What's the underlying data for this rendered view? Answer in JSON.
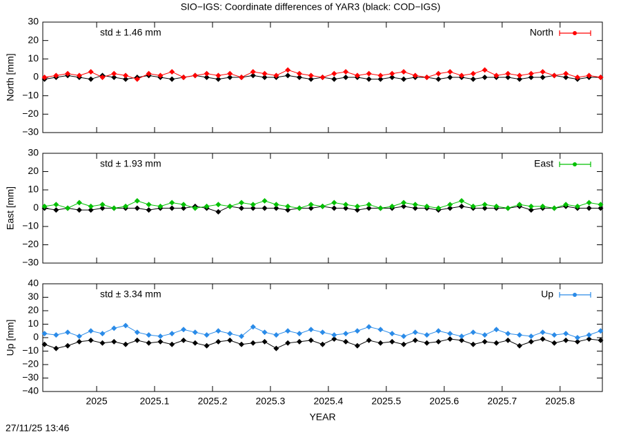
{
  "title": "SIO−IGS: Coordinate differences of YAR3 (black: COD−IGS)",
  "footer": "27/11/25 13:46",
  "chart_data": [
    {
      "type": "line",
      "ylabel": "North [mm]",
      "annotation": "std ± 1.46 mm",
      "x": [
        2024.91,
        2024.93,
        2024.95,
        2024.97,
        2024.99,
        2025.01,
        2025.03,
        2025.05,
        2025.07,
        2025.09,
        2025.11,
        2025.13,
        2025.15,
        2025.17,
        2025.19,
        2025.21,
        2025.23,
        2025.25,
        2025.27,
        2025.29,
        2025.31,
        2025.33,
        2025.35,
        2025.37,
        2025.39,
        2025.41,
        2025.43,
        2025.45,
        2025.47,
        2025.49,
        2025.51,
        2025.53,
        2025.55,
        2025.57,
        2025.59,
        2025.61,
        2025.63,
        2025.65,
        2025.67,
        2025.69,
        2025.71,
        2025.73,
        2025.75,
        2025.77,
        2025.79,
        2025.81,
        2025.83,
        2025.85,
        2025.87
      ],
      "series": [
        {
          "color": "#000000",
          "values": [
            -1,
            0,
            1,
            0,
            -1,
            1,
            0,
            -1,
            0,
            1,
            0,
            -1,
            0,
            1,
            0,
            -1,
            0,
            0,
            1,
            0,
            0,
            1,
            0,
            -1,
            0,
            -1,
            0,
            0,
            -1,
            -1,
            0,
            -1,
            0,
            0,
            -1,
            0,
            0,
            -1,
            0,
            0,
            0,
            -1,
            0,
            0,
            1,
            0,
            -1,
            0,
            0
          ]
        },
        {
          "name": "North",
          "color": "#ff0000",
          "values": [
            0,
            1,
            2,
            1,
            3,
            0,
            2,
            1,
            -1,
            2,
            1,
            3,
            0,
            1,
            2,
            1,
            2,
            0,
            3,
            2,
            1,
            4,
            2,
            1,
            0,
            2,
            3,
            1,
            2,
            1,
            2,
            3,
            1,
            0,
            2,
            3,
            1,
            2,
            4,
            1,
            2,
            1,
            2,
            3,
            1,
            2,
            0,
            1,
            0
          ]
        }
      ],
      "xlim": [
        2024.907,
        2025.873
      ],
      "ylim": [
        -30,
        30
      ],
      "xticks": [
        2025,
        2025.1,
        2025.2,
        2025.3,
        2025.4,
        2025.5,
        2025.6,
        2025.7,
        2025.8
      ],
      "yticks": [
        {
          "value": -30,
          "label": "−30"
        },
        {
          "value": -20,
          "label": "−20"
        },
        {
          "value": -10,
          "label": "−10"
        },
        0,
        10,
        20,
        30
      ]
    },
    {
      "type": "line",
      "ylabel": "East [mm]",
      "annotation": "std ± 1.93 mm",
      "x": [
        2024.91,
        2024.93,
        2024.95,
        2024.97,
        2024.99,
        2025.01,
        2025.03,
        2025.05,
        2025.07,
        2025.09,
        2025.11,
        2025.13,
        2025.15,
        2025.17,
        2025.19,
        2025.21,
        2025.23,
        2025.25,
        2025.27,
        2025.29,
        2025.31,
        2025.33,
        2025.35,
        2025.37,
        2025.39,
        2025.41,
        2025.43,
        2025.45,
        2025.47,
        2025.49,
        2025.51,
        2025.53,
        2025.55,
        2025.57,
        2025.59,
        2025.61,
        2025.63,
        2025.65,
        2025.67,
        2025.69,
        2025.71,
        2025.73,
        2025.75,
        2025.77,
        2025.79,
        2025.81,
        2025.83,
        2025.85,
        2025.87
      ],
      "series": [
        {
          "color": "#000000",
          "values": [
            0,
            -1,
            0,
            -1,
            -1,
            0,
            0,
            0,
            0,
            -1,
            0,
            0,
            0,
            1,
            0,
            -2,
            1,
            0,
            0,
            0,
            0,
            -1,
            0,
            0,
            1,
            0,
            0,
            -1,
            0,
            0,
            0,
            1,
            0,
            0,
            -1,
            0,
            1,
            0,
            0,
            0,
            0,
            1,
            -1,
            0,
            0,
            1,
            0,
            0,
            0
          ]
        },
        {
          "name": "East",
          "color": "#00c000",
          "values": [
            1,
            2,
            0,
            3,
            1,
            2,
            0,
            1,
            4,
            2,
            1,
            3,
            2,
            0,
            1,
            2,
            1,
            3,
            2,
            4,
            2,
            1,
            0,
            2,
            1,
            3,
            2,
            1,
            2,
            0,
            1,
            3,
            2,
            1,
            0,
            2,
            4,
            1,
            2,
            1,
            0,
            2,
            1,
            1,
            0,
            2,
            1,
            3,
            2
          ]
        }
      ],
      "xlim": [
        2024.907,
        2025.873
      ],
      "ylim": [
        -30,
        30
      ],
      "xticks": [
        2025,
        2025.1,
        2025.2,
        2025.3,
        2025.4,
        2025.5,
        2025.6,
        2025.7,
        2025.8
      ],
      "yticks": [
        {
          "value": -30,
          "label": "−30"
        },
        {
          "value": -20,
          "label": "−20"
        },
        {
          "value": -10,
          "label": "−10"
        },
        0,
        10,
        20,
        30
      ]
    },
    {
      "type": "line",
      "ylabel": "Up [mm]",
      "annotation": "std ± 3.34 mm",
      "xlabel": "YEAR",
      "x": [
        2024.91,
        2024.93,
        2024.95,
        2024.97,
        2024.99,
        2025.01,
        2025.03,
        2025.05,
        2025.07,
        2025.09,
        2025.11,
        2025.13,
        2025.15,
        2025.17,
        2025.19,
        2025.21,
        2025.23,
        2025.25,
        2025.27,
        2025.29,
        2025.31,
        2025.33,
        2025.35,
        2025.37,
        2025.39,
        2025.41,
        2025.43,
        2025.45,
        2025.47,
        2025.49,
        2025.51,
        2025.53,
        2025.55,
        2025.57,
        2025.59,
        2025.61,
        2025.63,
        2025.65,
        2025.67,
        2025.69,
        2025.71,
        2025.73,
        2025.75,
        2025.77,
        2025.79,
        2025.81,
        2025.83,
        2025.85,
        2025.87
      ],
      "series": [
        {
          "color": "#000000",
          "values": [
            -5,
            -8,
            -6,
            -3,
            -2,
            -4,
            -3,
            -5,
            -2,
            -4,
            -3,
            -5,
            -2,
            -4,
            -6,
            -3,
            -2,
            -5,
            -4,
            -3,
            -8,
            -4,
            -3,
            -2,
            -5,
            -1,
            -3,
            -6,
            -2,
            -4,
            -3,
            -5,
            -2,
            -4,
            -3,
            -1,
            -2,
            -5,
            -3,
            -4,
            -2,
            -6,
            -3,
            -1,
            -4,
            -2,
            -3,
            -1,
            -2
          ]
        },
        {
          "name": "Up",
          "color": "#2a8be8",
          "values": [
            3,
            2,
            4,
            1,
            5,
            3,
            7,
            9,
            4,
            2,
            1,
            3,
            6,
            4,
            2,
            5,
            3,
            1,
            8,
            4,
            2,
            5,
            3,
            6,
            4,
            2,
            3,
            5,
            8,
            6,
            3,
            1,
            4,
            2,
            5,
            3,
            1,
            4,
            2,
            6,
            3,
            2,
            1,
            4,
            2,
            3,
            0,
            2,
            5
          ]
        }
      ],
      "xlim": [
        2024.907,
        2025.873
      ],
      "ylim": [
        -40,
        40
      ],
      "xticks": [
        2025,
        2025.1,
        2025.2,
        2025.3,
        2025.4,
        2025.5,
        2025.6,
        2025.7,
        2025.8
      ],
      "yticks": [
        {
          "value": -40,
          "label": "−40"
        },
        {
          "value": -30,
          "label": "−30"
        },
        {
          "value": -20,
          "label": "−20"
        },
        {
          "value": -10,
          "label": "−10"
        },
        0,
        10,
        20,
        30,
        40
      ]
    }
  ]
}
